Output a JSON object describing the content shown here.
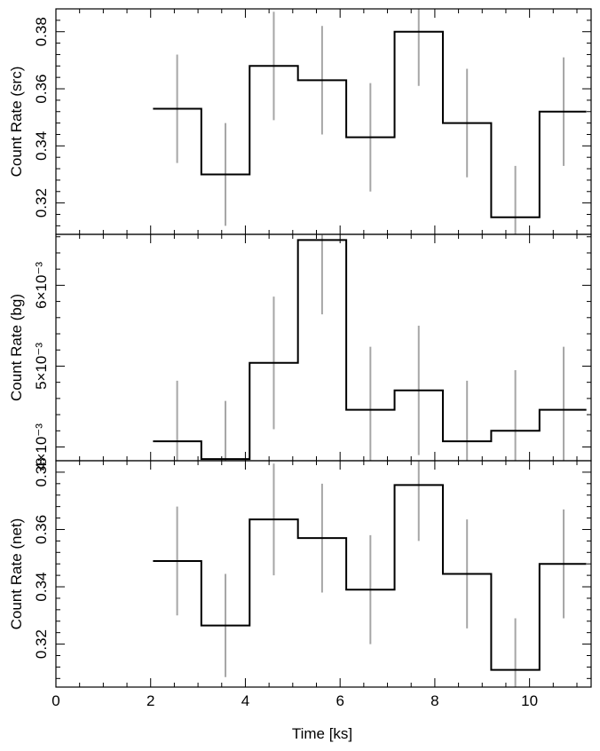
{
  "chart_data": {
    "type": "line",
    "xlabel": "Time [ks]",
    "xlim": [
      0,
      11.3
    ],
    "x_ticks": [
      0,
      2,
      4,
      6,
      8,
      10
    ],
    "bin_edges": [
      2.05,
      3.07,
      4.09,
      5.11,
      6.13,
      7.15,
      8.17,
      9.19,
      10.21,
      11.2
    ],
    "bin_centers": [
      2.56,
      3.58,
      4.6,
      5.62,
      6.64,
      7.66,
      8.68,
      9.7,
      10.72
    ],
    "line_color": "#000000",
    "errbar_color": "#a6a6a6",
    "panels": [
      {
        "ylabel": "Count Rate (src)",
        "ylim": [
          0.309,
          0.388
        ],
        "y_ticks": [
          0.32,
          0.34,
          0.36,
          0.38
        ],
        "y_tick_labels": [
          "0.32",
          "0.34",
          "0.36",
          "0.38"
        ],
        "values": [
          0.353,
          0.33,
          0.368,
          0.363,
          0.343,
          0.38,
          0.348,
          0.315,
          0.352
        ],
        "errors": [
          0.019,
          0.018,
          0.019,
          0.019,
          0.019,
          0.019,
          0.019,
          0.018,
          0.019
        ]
      },
      {
        "ylabel": "Count Rate (bg)",
        "ylim": [
          0.00383,
          0.00663
        ],
        "y_ticks": [
          0.004,
          0.005,
          0.006
        ],
        "y_tick_labels": [
          "4×10⁻³",
          "5×10⁻³",
          "6×10⁻³"
        ],
        "values": [
          0.00407,
          0.00385,
          0.00504,
          0.00656,
          0.00446,
          0.0047,
          0.00407,
          0.0042,
          0.00446
        ],
        "errors": [
          0.00075,
          0.00072,
          0.00082,
          0.00092,
          0.00078,
          0.0008,
          0.00075,
          0.00075,
          0.00078
        ]
      },
      {
        "ylabel": "Count Rate (net)",
        "ylim": [
          0.305,
          0.384
        ],
        "y_ticks": [
          0.32,
          0.34,
          0.36,
          0.38
        ],
        "y_tick_labels": [
          "0.32",
          "0.34",
          "0.36",
          "0.38"
        ],
        "values": [
          0.349,
          0.3265,
          0.3635,
          0.357,
          0.339,
          0.3755,
          0.3445,
          0.311,
          0.348
        ],
        "errors": [
          0.019,
          0.018,
          0.0195,
          0.019,
          0.019,
          0.0195,
          0.019,
          0.018,
          0.019
        ]
      }
    ]
  }
}
